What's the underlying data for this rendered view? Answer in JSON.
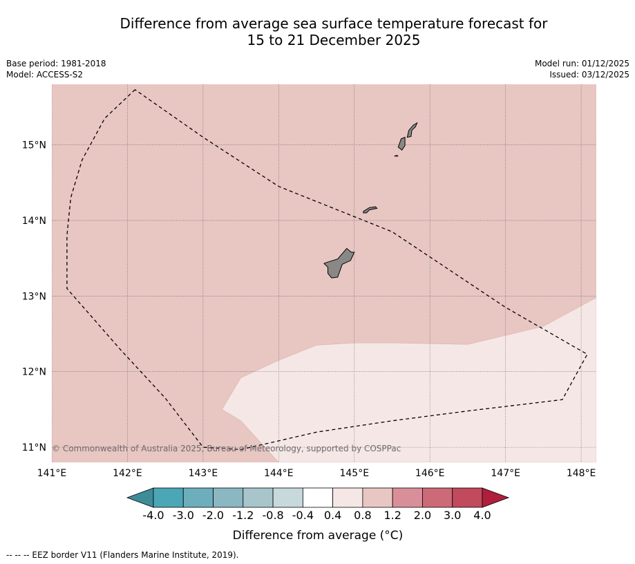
{
  "title": {
    "line1": "Difference from average sea surface temperature forecast for",
    "line2": "15 to 21 December 2025"
  },
  "meta_left": {
    "base_period": "Base period: 1981-2018",
    "model": "Model: ACCESS-S2"
  },
  "meta_right": {
    "model_run": "Model run: 01/12/2025",
    "issued": "Issued: 03/12/2025"
  },
  "map": {
    "background_color": "#e8c6c2",
    "light_region_color": "#f5e7e6",
    "land_color": "#8a8787",
    "copyright": "© Commonwealth of Australia 2025, Bureau of Meteorology, supported by COSPPac",
    "extent": {
      "lon": [
        141.0,
        148.2
      ],
      "lat": [
        10.8,
        15.8
      ]
    },
    "lon_ticks": [
      {
        "value": 141,
        "label": "141°E"
      },
      {
        "value": 142,
        "label": "142°E"
      },
      {
        "value": 143,
        "label": "143°E"
      },
      {
        "value": 144,
        "label": "144°E"
      },
      {
        "value": 145,
        "label": "145°E"
      },
      {
        "value": 146,
        "label": "146°E"
      },
      {
        "value": 147,
        "label": "147°E"
      },
      {
        "value": 148,
        "label": "148°E"
      }
    ],
    "lat_ticks": [
      {
        "value": 15,
        "label": "15°N"
      },
      {
        "value": 14,
        "label": "14°N"
      },
      {
        "value": 13,
        "label": "13°N"
      },
      {
        "value": 12,
        "label": "12°N"
      },
      {
        "value": 11,
        "label": "11°N"
      }
    ],
    "eez_border": [
      [
        142.1,
        15.73
      ],
      [
        141.7,
        15.35
      ],
      [
        141.4,
        14.8
      ],
      [
        141.25,
        14.3
      ],
      [
        141.2,
        13.8
      ],
      [
        141.2,
        13.1
      ],
      [
        141.9,
        12.3
      ],
      [
        142.5,
        11.65
      ],
      [
        143.0,
        11.0
      ],
      [
        143.5,
        10.97
      ],
      [
        144.5,
        11.2
      ],
      [
        145.5,
        11.35
      ],
      [
        146.5,
        11.48
      ],
      [
        147.5,
        11.6
      ],
      [
        147.75,
        11.63
      ],
      [
        148.08,
        12.23
      ],
      [
        147.0,
        12.85
      ],
      [
        145.5,
        13.85
      ],
      [
        144.0,
        14.45
      ],
      [
        143.0,
        15.1
      ],
      [
        142.1,
        15.73
      ]
    ],
    "anomaly_region_0_4_to_0_8": [
      [
        141.0,
        15.8
      ],
      [
        148.2,
        15.8
      ],
      [
        148.2,
        12.98
      ],
      [
        147.5,
        12.6
      ],
      [
        146.5,
        12.36
      ],
      [
        145.5,
        12.38
      ],
      [
        145.0,
        12.38
      ],
      [
        144.5,
        12.35
      ],
      [
        144.0,
        12.15
      ],
      [
        143.5,
        11.92
      ],
      [
        143.25,
        11.5
      ],
      [
        143.5,
        11.35
      ],
      [
        144.0,
        10.8
      ],
      [
        141.0,
        10.8
      ]
    ],
    "anomaly_region_neg0_4_to_0_4": [],
    "anomaly_region_light": [
      [
        144.0,
        10.8
      ],
      [
        143.5,
        11.35
      ],
      [
        143.25,
        11.5
      ],
      [
        143.5,
        11.92
      ],
      [
        144.0,
        12.15
      ],
      [
        144.5,
        12.35
      ],
      [
        145.0,
        12.38
      ],
      [
        145.5,
        12.38
      ],
      [
        146.5,
        12.36
      ],
      [
        147.5,
        12.6
      ],
      [
        148.2,
        12.98
      ],
      [
        148.2,
        10.8
      ]
    ],
    "islands": [
      {
        "name": "Guam",
        "coords": [
          [
            144.62,
            13.44
          ],
          [
            144.78,
            13.49
          ],
          [
            144.9,
            13.63
          ],
          [
            144.96,
            13.58
          ],
          [
            145.0,
            13.58
          ],
          [
            144.95,
            13.47
          ],
          [
            144.84,
            13.42
          ],
          [
            144.78,
            13.25
          ],
          [
            144.7,
            13.24
          ],
          [
            144.65,
            13.3
          ],
          [
            144.65,
            13.38
          ],
          [
            144.6,
            13.43
          ]
        ]
      },
      {
        "name": "Rota",
        "coords": [
          [
            145.12,
            14.12
          ],
          [
            145.2,
            14.17
          ],
          [
            145.28,
            14.18
          ],
          [
            145.3,
            14.16
          ],
          [
            145.2,
            14.14
          ],
          [
            145.16,
            14.1
          ],
          [
            145.12,
            14.1
          ]
        ]
      },
      {
        "name": "Tinian",
        "coords": [
          [
            145.58,
            14.97
          ],
          [
            145.62,
            15.08
          ],
          [
            145.67,
            15.1
          ],
          [
            145.67,
            14.99
          ],
          [
            145.63,
            14.93
          ]
        ]
      },
      {
        "name": "Saipan",
        "coords": [
          [
            145.7,
            15.1
          ],
          [
            145.72,
            15.19
          ],
          [
            145.78,
            15.26
          ],
          [
            145.83,
            15.29
          ],
          [
            145.81,
            15.24
          ],
          [
            145.76,
            15.19
          ],
          [
            145.75,
            15.11
          ]
        ]
      },
      {
        "name": "Aguijan",
        "coords": [
          [
            145.53,
            14.85
          ],
          [
            145.56,
            14.86
          ],
          [
            145.58,
            14.85
          ]
        ]
      }
    ]
  },
  "colorbar": {
    "label": "Difference from average (°C)",
    "bins": [
      {
        "color": "#4ba6b6"
      },
      {
        "color": "#6daebd"
      },
      {
        "color": "#8ab7c2"
      },
      {
        "color": "#a7c5ca"
      },
      {
        "color": "#c7d9dc"
      },
      {
        "color": "#ffffff"
      },
      {
        "color": "#f5e7e6"
      },
      {
        "color": "#e8c6c2"
      },
      {
        "color": "#d98f99"
      },
      {
        "color": "#cd6a78"
      },
      {
        "color": "#c14a5c"
      }
    ],
    "under_color": "#3f8c99",
    "over_color": "#b01e3c",
    "tick_labels": [
      "-4.0",
      "-3.0",
      "-2.0",
      "-1.2",
      "-0.8",
      "-0.4",
      "0.4",
      "0.8",
      "1.2",
      "2.0",
      "3.0",
      "4.0"
    ]
  },
  "legend_note": "--  --  -- EEZ border V11 (Flanders Marine Institute, 2019)."
}
